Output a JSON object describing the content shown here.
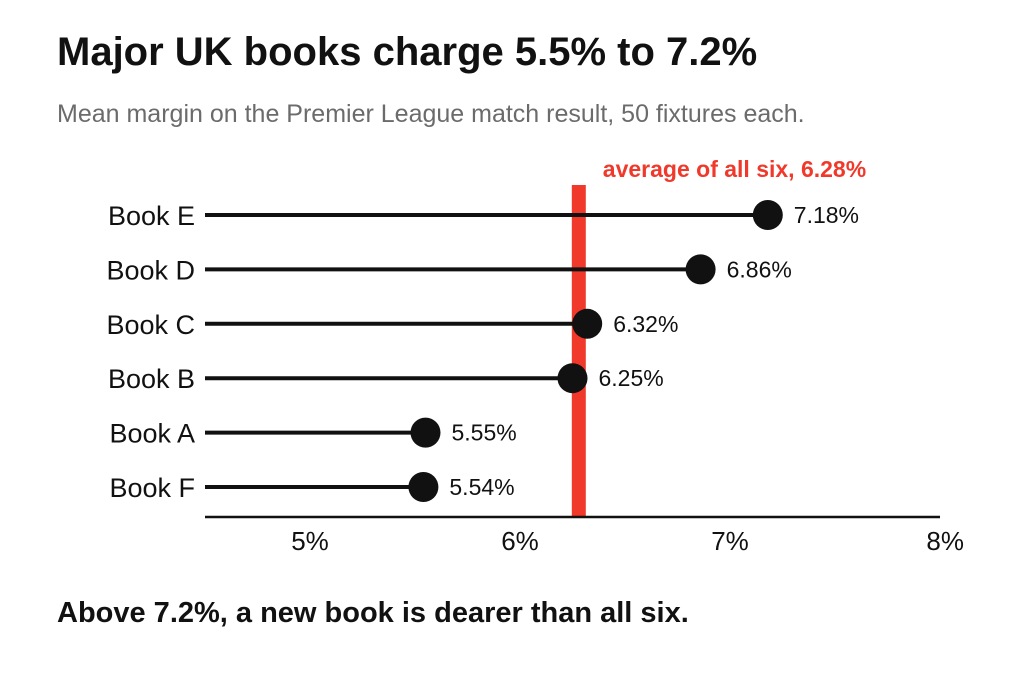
{
  "header": {
    "title": "Major UK books charge 5.5% to 7.2%",
    "subtitle": "Mean margin on the Premier League match result, 50 fixtures each."
  },
  "footer": {
    "note": "Above 7.2%, a new book is dearer than all six."
  },
  "chart_data": {
    "type": "lollipop",
    "categories": [
      "Book E",
      "Book D",
      "Book C",
      "Book B",
      "Book A",
      "Book F"
    ],
    "values": [
      7.18,
      6.86,
      6.32,
      6.25,
      5.55,
      5.54
    ],
    "value_labels": [
      "7.18%",
      "6.86%",
      "6.32%",
      "6.25%",
      "5.55%",
      "5.54%"
    ],
    "x_ticks": [
      5,
      6,
      7,
      8
    ],
    "x_tick_labels": [
      "5%",
      "6%",
      "7%",
      "8%"
    ],
    "xlim": [
      4.5,
      8
    ],
    "reference_line": {
      "value": 6.28,
      "label": "average of all six, 6.28%",
      "color": "#f0392b"
    },
    "colors": {
      "stem": "#111111",
      "dot": "#111111",
      "axis": "#111111"
    },
    "grid": false,
    "legend": "none"
  }
}
